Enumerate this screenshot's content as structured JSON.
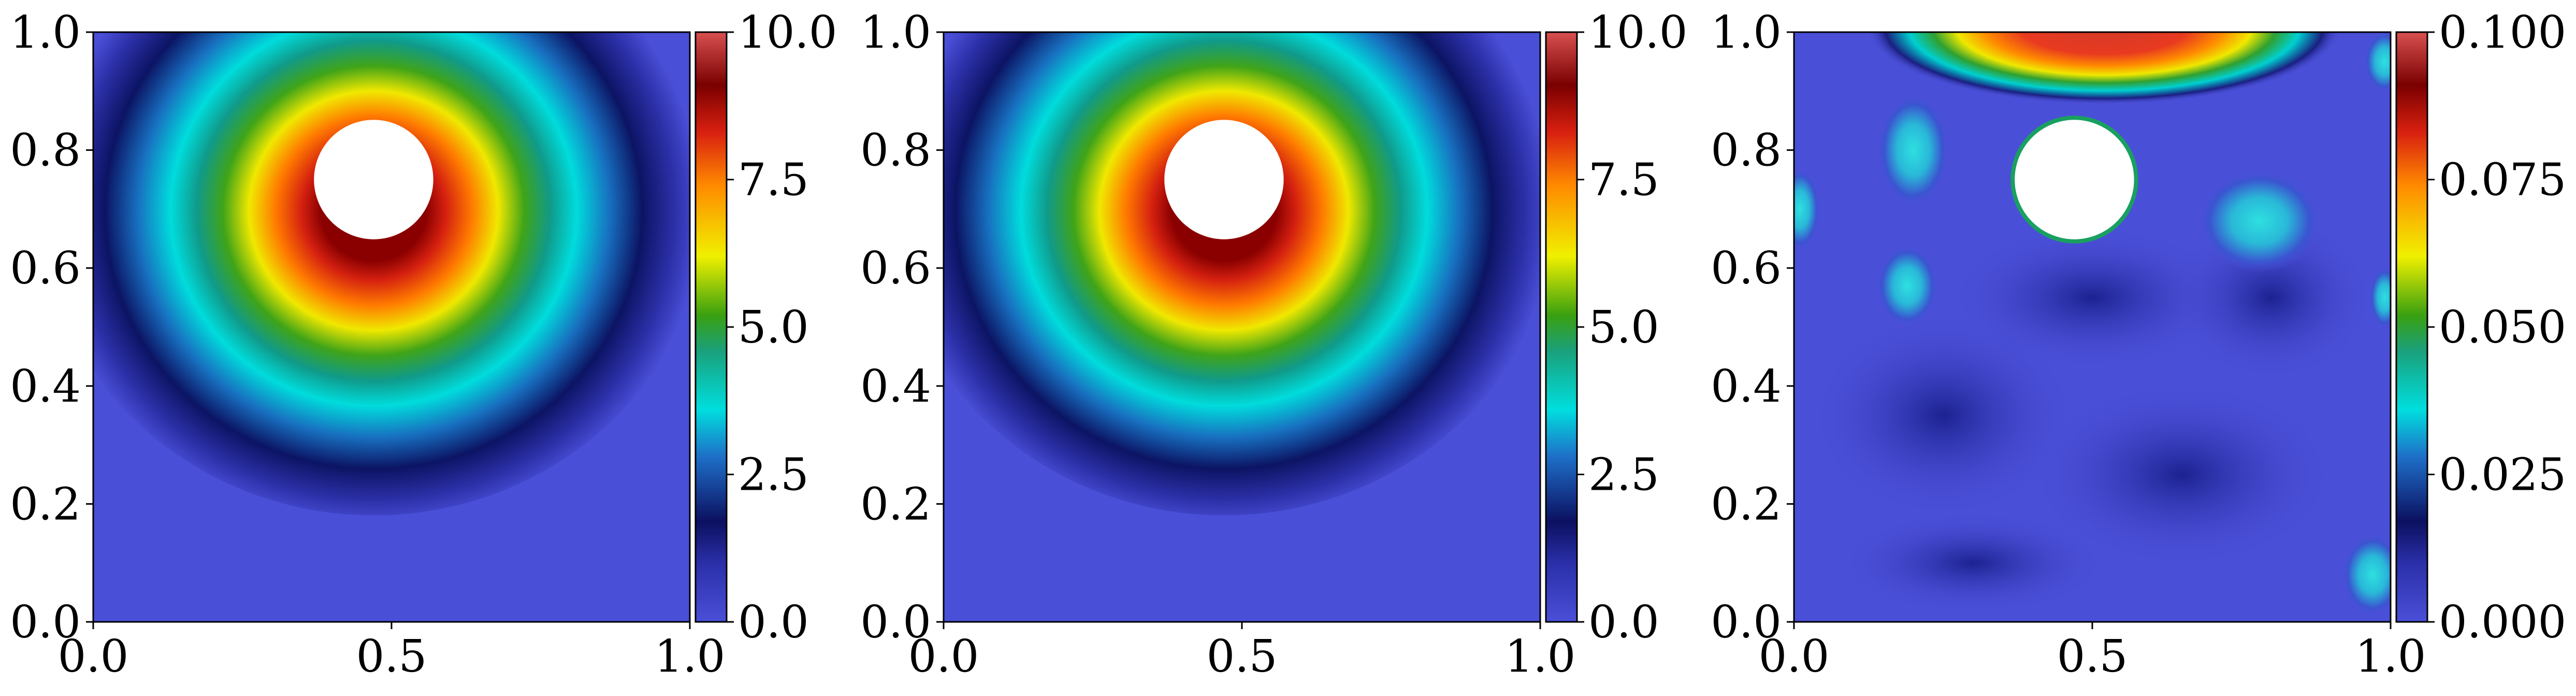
{
  "chart_data": [
    {
      "type": "heatmap",
      "title": "",
      "xlabel": "",
      "ylabel": "",
      "xlim": [
        0.0,
        1.0
      ],
      "ylim": [
        0.0,
        1.0
      ],
      "x_ticks": [
        "0.0",
        "0.5",
        "1.0"
      ],
      "y_ticks": [
        "0.0",
        "0.2",
        "0.4",
        "0.6",
        "0.8",
        "1.0"
      ],
      "colorbar": {
        "range": [
          0.0,
          10.0
        ],
        "ticks": [
          "0.0",
          "2.5",
          "5.0",
          "7.5",
          "10.0"
        ]
      },
      "obstacle": {
        "shape": "circle",
        "center": [
          0.47,
          0.75
        ],
        "radius": 0.1
      },
      "field": {
        "description_values": "peak ~10 at ring around obstacle, decaying to ~0 at domain edges"
      }
    },
    {
      "type": "heatmap",
      "title": "",
      "xlabel": "",
      "ylabel": "",
      "xlim": [
        0.0,
        1.0
      ],
      "ylim": [
        0.0,
        1.0
      ],
      "x_ticks": [
        "0.0",
        "0.5",
        "1.0"
      ],
      "y_ticks": [
        "0.0",
        "0.2",
        "0.4",
        "0.6",
        "0.8",
        "1.0"
      ],
      "colorbar": {
        "range": [
          0.0,
          10.0
        ],
        "ticks": [
          "0.0",
          "2.5",
          "5.0",
          "7.5",
          "10.0"
        ]
      },
      "obstacle": {
        "shape": "circle",
        "center": [
          0.47,
          0.75
        ],
        "radius": 0.1
      }
    },
    {
      "type": "heatmap",
      "title": "",
      "xlabel": "",
      "ylabel": "",
      "xlim": [
        0.0,
        1.0
      ],
      "ylim": [
        0.0,
        1.0
      ],
      "x_ticks": [
        "0.0",
        "0.5",
        "1.0"
      ],
      "y_ticks": [
        "0.0",
        "0.2",
        "0.4",
        "0.6",
        "0.8",
        "1.0"
      ],
      "colorbar": {
        "range": [
          0.0,
          0.1
        ],
        "ticks": [
          "0.000",
          "0.025",
          "0.050",
          "0.075",
          "0.100"
        ]
      },
      "obstacle": {
        "shape": "circle",
        "center": [
          0.47,
          0.75
        ],
        "radius": 0.1
      }
    }
  ],
  "colormap": [
    "#4a4fd8",
    "#141a6e",
    "#00e5e5",
    "#33a020",
    "#f2f200",
    "#ff7a00",
    "#d41818",
    "#8a0000",
    "#d64a4a"
  ]
}
